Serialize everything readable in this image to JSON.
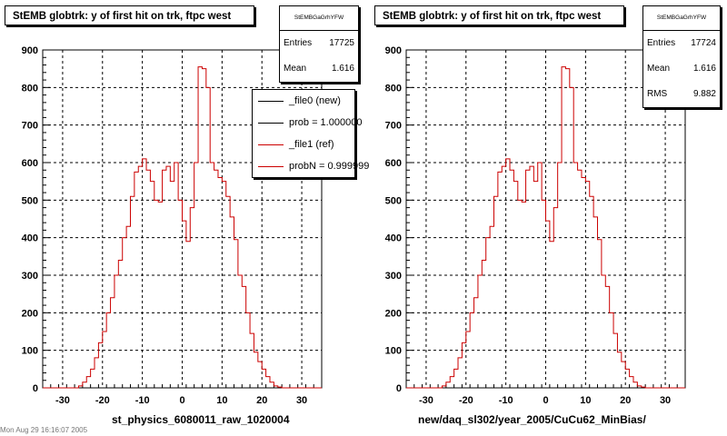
{
  "chart_data": [
    {
      "type": "histogram",
      "title": "StEMB globtrk: y of first hit on trk, ftpc west",
      "xlabel": "st_physics_6080011_raw_1020004",
      "xlim": [
        -35,
        35
      ],
      "ylim": [
        0,
        900
      ],
      "x_ticks": [
        -30,
        -20,
        -10,
        0,
        10,
        20,
        30
      ],
      "y_ticks": [
        0,
        100,
        200,
        300,
        400,
        500,
        600,
        700,
        800,
        900
      ],
      "grid": true,
      "stats": {
        "name": "StEMBGaGrhYFW",
        "rows": [
          {
            "label": "Entries",
            "value": "17725"
          },
          {
            "label": "Mean",
            "value": "1.616"
          }
        ]
      },
      "legend": {
        "position": "top-right",
        "entries": [
          {
            "label": "_file0 (new)",
            "color": "#000000"
          },
          {
            "label": "prob = 1.000000",
            "color": "#000000"
          },
          {
            "label": "_file1 (ref)",
            "color": "#cc0000"
          },
          {
            "label": "probN = 0.999999",
            "color": "#cc0000"
          }
        ]
      },
      "series": [
        {
          "color": "#cc0000",
          "bin_edges": [
            -26,
            27
          ],
          "values": [
            5,
            15,
            30,
            50,
            80,
            120,
            150,
            200,
            240,
            300,
            340,
            400,
            430,
            510,
            575,
            590,
            610,
            580,
            550,
            500,
            495,
            580,
            590,
            550,
            600,
            500,
            445,
            390,
            480,
            600,
            855,
            850,
            800,
            600,
            580,
            560,
            550,
            510,
            455,
            395,
            300,
            270,
            200,
            145,
            95,
            70,
            50,
            30,
            15,
            5,
            2,
            0,
            0
          ]
        }
      ]
    },
    {
      "type": "histogram",
      "title": "StEMB globtrk: y of first hit on trk, ftpc west",
      "xlabel": "new/daq_sl302/year_2005/CuCu62_MinBias/",
      "xlim": [
        -35,
        35
      ],
      "ylim": [
        0,
        900
      ],
      "x_ticks": [
        -30,
        -20,
        -10,
        0,
        10,
        20,
        30
      ],
      "y_ticks": [
        0,
        100,
        200,
        300,
        400,
        500,
        600,
        700,
        800,
        900
      ],
      "grid": true,
      "stats": {
        "name": "StEMBGaGrhYFW",
        "rows": [
          {
            "label": "Entries",
            "value": "17724"
          },
          {
            "label": "Mean",
            "value": "1.616"
          },
          {
            "label": "RMS",
            "value": "9.882"
          }
        ]
      },
      "series": [
        {
          "color": "#cc0000",
          "bin_edges": [
            -26,
            27
          ],
          "values": [
            5,
            15,
            30,
            50,
            80,
            120,
            150,
            200,
            240,
            300,
            340,
            400,
            430,
            510,
            575,
            590,
            610,
            580,
            550,
            500,
            495,
            580,
            590,
            550,
            600,
            500,
            445,
            390,
            480,
            600,
            855,
            850,
            800,
            600,
            580,
            560,
            550,
            510,
            455,
            395,
            300,
            270,
            200,
            145,
            95,
            70,
            50,
            30,
            15,
            5,
            2,
            0,
            0
          ]
        }
      ]
    }
  ],
  "footer_text": "Mon Aug 29 16:16:07 2005"
}
